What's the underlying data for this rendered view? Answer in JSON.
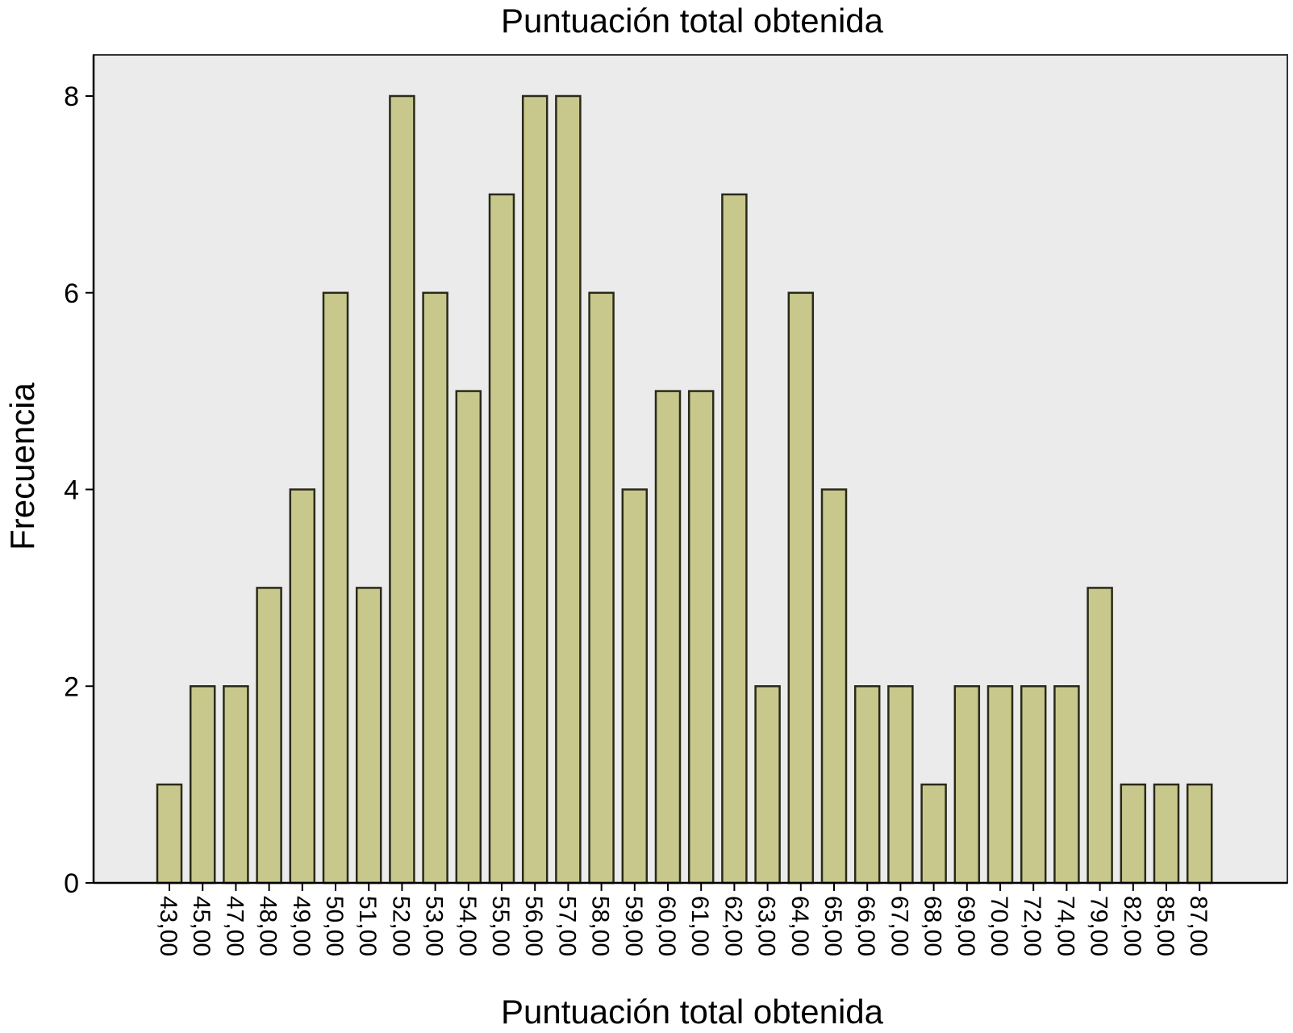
{
  "chart_data": {
    "type": "bar",
    "title": "Puntuación total obtenida",
    "xlabel": "Puntuación total obtenida",
    "ylabel": "Frecuencia",
    "categories": [
      "43,00",
      "45,00",
      "47,00",
      "48,00",
      "49,00",
      "50,00",
      "51,00",
      "52,00",
      "53,00",
      "54,00",
      "55,00",
      "56,00",
      "57,00",
      "58,00",
      "59,00",
      "60,00",
      "61,00",
      "62,00",
      "63,00",
      "64,00",
      "65,00",
      "66,00",
      "67,00",
      "68,00",
      "69,00",
      "70,00",
      "72,00",
      "74,00",
      "79,00",
      "82,00",
      "85,00",
      "87,00"
    ],
    "values": [
      1,
      2,
      2,
      3,
      4,
      6,
      3,
      8,
      6,
      5,
      7,
      8,
      8,
      6,
      4,
      5,
      5,
      7,
      2,
      6,
      4,
      2,
      2,
      1,
      2,
      2,
      2,
      2,
      3,
      1,
      1,
      1
    ],
    "ylim": [
      0,
      8.4
    ],
    "yticks": [
      "0",
      "2",
      "4",
      "6",
      "8"
    ],
    "grid": false,
    "colors": {
      "bar_fill": "#c8c88c",
      "bar_stroke": "#2a2a1a",
      "plot_background": "#ebebeb",
      "axis": "#000000"
    }
  }
}
